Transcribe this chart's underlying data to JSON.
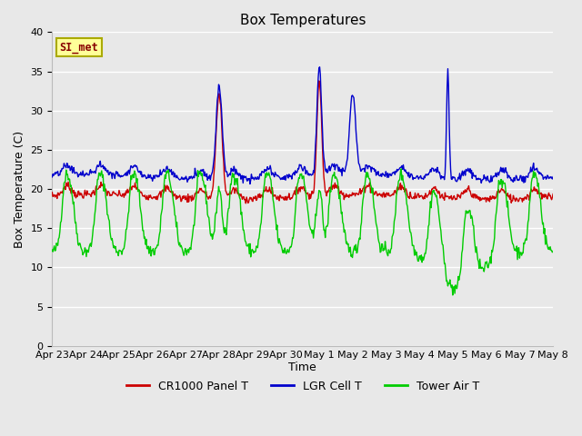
{
  "title": "Box Temperatures",
  "xlabel": "Time",
  "ylabel": "Box Temperature (C)",
  "ylim": [
    0,
    40
  ],
  "yticks": [
    0,
    5,
    10,
    15,
    20,
    25,
    30,
    35,
    40
  ],
  "xtick_labels": [
    "Apr 23",
    "Apr 24",
    "Apr 25",
    "Apr 26",
    "Apr 27",
    "Apr 28",
    "Apr 29",
    "Apr 30",
    "May 1",
    "May 2",
    "May 3",
    "May 4",
    "May 5",
    "May 6",
    "May 7",
    "May 8"
  ],
  "red_color": "#cc0000",
  "blue_color": "#0000cc",
  "green_color": "#00cc00",
  "legend_labels": [
    "CR1000 Panel T",
    "LGR Cell T",
    "Tower Air T"
  ],
  "annotation_text": "SI_met",
  "annotation_fg": "#880000",
  "annotation_bg": "#ffff99",
  "annotation_border": "#aaaa00",
  "bg_color": "#e8e8e8",
  "grid_color": "#ffffff",
  "title_fontsize": 11,
  "axis_label_fontsize": 9,
  "tick_fontsize": 8,
  "legend_fontsize": 9,
  "n_days": 15,
  "figwidth": 6.4,
  "figheight": 4.8,
  "dpi": 100
}
